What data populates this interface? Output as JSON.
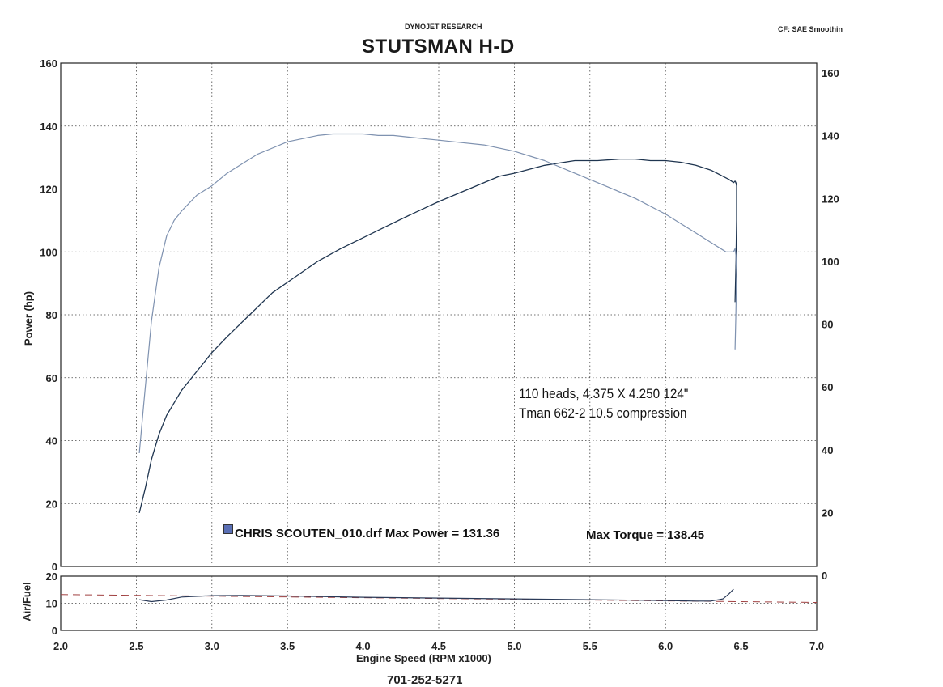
{
  "header": {
    "company": "DYNOJET RESEARCH",
    "title": "STUTSMAN H-D",
    "correction": "CF: SAE  Smoothin"
  },
  "footer": {
    "phone": "701-252-5271"
  },
  "annotation": {
    "line1": "110 heads,  4.375 X 4.250 124\"",
    "line2": "Tman 662-2   10.5 compression"
  },
  "legend": {
    "run_label": "CHRIS SCOUTEN_010.drf Max Power = 131.36",
    "torque_label": "Max Torque = 138.45",
    "swatch_color": "#5a6fb5"
  },
  "chart_data": [
    {
      "type": "line",
      "name": "main",
      "ylabel": "Power (hp)",
      "xlim": [
        2.0,
        7.0
      ],
      "ylim_left": [
        0,
        160
      ],
      "ylim_right": [
        0,
        160
      ],
      "left_ticks": [
        "0",
        "20",
        "40",
        "60",
        "80",
        "100",
        "120",
        "140",
        "160"
      ],
      "right_ticks": [
        "0",
        "20",
        "40",
        "60",
        "80",
        "100",
        "120",
        "140",
        "160"
      ],
      "grid": true,
      "series": [
        {
          "role": "power",
          "color": "#1f3550",
          "x": [
            2.52,
            2.56,
            2.6,
            2.65,
            2.7,
            2.8,
            2.9,
            3.0,
            3.1,
            3.25,
            3.4,
            3.55,
            3.7,
            3.85,
            4.0,
            4.15,
            4.3,
            4.5,
            4.7,
            4.9,
            5.0,
            5.2,
            5.4,
            5.55,
            5.7,
            5.8,
            5.9,
            6.0,
            6.1,
            6.2,
            6.3,
            6.38,
            6.42,
            6.45,
            6.46,
            6.465,
            6.47,
            6.47,
            6.465,
            6.46
          ],
          "y": [
            17,
            25,
            34,
            42,
            48,
            56,
            62,
            68,
            73,
            80,
            87,
            92,
            97,
            101,
            104.5,
            108,
            111.5,
            116,
            120,
            124,
            125,
            127.5,
            129,
            129,
            129.5,
            129.5,
            129,
            129,
            128.5,
            127.5,
            126,
            124,
            123,
            122,
            122.5,
            122,
            121,
            110,
            95,
            84
          ]
        },
        {
          "role": "torque",
          "color": "#7f92b0",
          "x": [
            2.52,
            2.55,
            2.6,
            2.65,
            2.7,
            2.75,
            2.8,
            2.9,
            3.0,
            3.1,
            3.2,
            3.3,
            3.4,
            3.5,
            3.6,
            3.7,
            3.8,
            3.9,
            4.0,
            4.1,
            4.2,
            4.3,
            4.4,
            4.5,
            4.6,
            4.8,
            5.0,
            5.2,
            5.4,
            5.6,
            5.8,
            6.0,
            6.1,
            6.2,
            6.3,
            6.4,
            6.45,
            6.46,
            6.465,
            6.47,
            6.465,
            6.46
          ],
          "y": [
            36,
            52,
            78,
            95,
            105,
            110,
            113,
            118,
            121,
            125,
            128,
            131,
            133,
            135,
            136,
            137,
            137.5,
            137.5,
            137.5,
            137,
            137,
            136.5,
            136,
            135.5,
            135,
            134,
            132,
            129,
            125,
            121,
            117,
            112,
            109,
            106,
            103,
            100,
            100,
            101,
            99,
            93,
            80,
            69
          ]
        }
      ]
    },
    {
      "type": "line",
      "name": "afr",
      "ylabel": "Air/Fuel",
      "xlabel": "Engine Speed (RPM x1000)",
      "xlim": [
        2.0,
        7.0
      ],
      "ylim": [
        0,
        20
      ],
      "x_ticks": [
        "2.0",
        "2.5",
        "3.0",
        "3.5",
        "4.0",
        "4.5",
        "5.0",
        "5.5",
        "6.0",
        "6.5",
        "7.0"
      ],
      "y_ticks": [
        "0",
        "10",
        "20"
      ],
      "reference_line": {
        "color": "#a04040",
        "x": [
          2.0,
          7.0
        ],
        "y": [
          13.2,
          10.3
        ]
      },
      "series": [
        {
          "role": "air-fuel",
          "color": "#2a3a58",
          "x": [
            2.52,
            2.6,
            2.7,
            2.8,
            3.0,
            3.2,
            3.5,
            4.0,
            4.5,
            5.0,
            5.5,
            6.0,
            6.2,
            6.3,
            6.38,
            6.42,
            6.45
          ],
          "y": [
            11.3,
            10.6,
            11.2,
            12.3,
            12.8,
            12.9,
            12.7,
            12.2,
            11.9,
            11.6,
            11.3,
            11.0,
            10.8,
            10.8,
            11.6,
            13.5,
            15.2
          ]
        }
      ]
    }
  ]
}
